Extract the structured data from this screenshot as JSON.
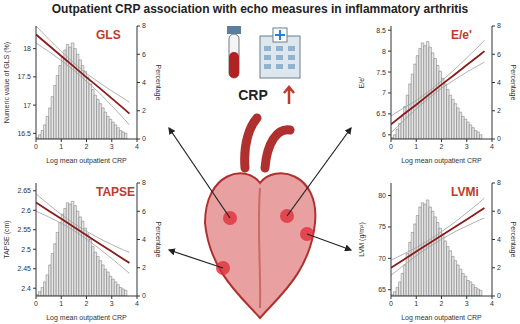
{
  "title": "Outpatient CRP association with echo measures in inflammatory arthritis",
  "icon_text": "CRP",
  "chart_data": [
    {
      "type": "histogram",
      "title": "GLS",
      "x_label": "Log mean outpatient CRP",
      "y_label": "Numeric value of GLS (%)",
      "y2_label": "Percentage",
      "xlim": [
        0,
        4
      ],
      "xticks": [
        0,
        1,
        2,
        3,
        4
      ],
      "ylim": [
        16.4,
        18.4
      ],
      "yticks": [
        16.5,
        17,
        17.5,
        18
      ],
      "y2lim": [
        0,
        8
      ],
      "y2ticks": [
        0,
        2,
        4,
        6,
        8
      ],
      "bins": [
        0,
        0.1,
        0.2,
        0.3,
        0.4,
        0.5,
        0.6,
        0.7,
        0.8,
        0.9,
        1,
        1.1,
        1.2,
        1.3,
        1.4,
        1.5,
        1.6,
        1.7,
        1.8,
        1.9,
        2,
        2.1,
        2.2,
        2.3,
        2.4,
        2.5,
        2.6,
        2.7,
        2.8,
        2.9,
        3,
        3.1,
        3.2,
        3.3,
        3.4,
        3.5,
        3.6
      ],
      "series": [
        {
          "type": "bar",
          "axis": "y2",
          "color": "#e6e6e6",
          "values": [
            0.1,
            0.3,
            0.6,
            1,
            1.6,
            2.2,
            3,
            3.8,
            4.5,
            5.2,
            5.8,
            6.3,
            6.7,
            6.5,
            6.8,
            6.4,
            6,
            5.6,
            5.2,
            4.8,
            4.4,
            3.9,
            3.5,
            3.1,
            2.8,
            2.5,
            2.2,
            1.9,
            1.6,
            1.4,
            1.2,
            1,
            0.8,
            0.6,
            0.5,
            0.4
          ]
        },
        {
          "type": "line",
          "color": "#8b1a1a",
          "x": [
            0,
            0.5,
            1,
            1.5,
            2,
            2.5,
            3,
            3.5,
            3.7
          ],
          "values": [
            18.25,
            18.06,
            17.87,
            17.68,
            17.49,
            17.31,
            17.12,
            16.93,
            16.85
          ]
        },
        {
          "type": "line",
          "color": "#9e9e9e",
          "x": [
            0,
            0.5,
            1,
            1.5,
            2,
            2.5,
            3,
            3.5,
            3.7
          ],
          "values": [
            18.4,
            18.17,
            17.95,
            17.745,
            17.56,
            17.4,
            17.25,
            17.11,
            17.05
          ]
        },
        {
          "type": "line",
          "color": "#9e9e9e",
          "x": [
            0,
            0.5,
            1,
            1.5,
            2,
            2.5,
            3,
            3.5,
            3.7
          ],
          "values": [
            18.1,
            17.95,
            17.79,
            17.615,
            17.42,
            17.22,
            16.99,
            16.75,
            16.65
          ]
        }
      ]
    },
    {
      "type": "histogram",
      "title": "E/e'",
      "x_label": "Log mean outpatient CRP",
      "y_label": "E/e'",
      "y2_label": "Percentage",
      "xlim": [
        0,
        4
      ],
      "xticks": [
        0,
        1,
        2,
        3,
        4
      ],
      "ylim": [
        5.9,
        8.6
      ],
      "yticks": [
        6,
        6.5,
        7,
        7.5,
        8,
        8.5
      ],
      "y2lim": [
        0,
        8
      ],
      "y2ticks": [
        0,
        2,
        4,
        6,
        8
      ],
      "bins": [
        0,
        0.1,
        0.2,
        0.3,
        0.4,
        0.5,
        0.6,
        0.7,
        0.8,
        0.9,
        1,
        1.1,
        1.2,
        1.3,
        1.4,
        1.5,
        1.6,
        1.7,
        1.8,
        1.9,
        2,
        2.1,
        2.2,
        2.3,
        2.4,
        2.5,
        2.6,
        2.7,
        2.8,
        2.9,
        3,
        3.1,
        3.2,
        3.3,
        3.4,
        3.5,
        3.6
      ],
      "series": [
        {
          "type": "bar",
          "axis": "y2",
          "color": "#e6e6e6",
          "values": [
            0.1,
            0.3,
            0.7,
            1.1,
            1.6,
            2.3,
            3.1,
            3.9,
            4.6,
            5.3,
            5.9,
            6.4,
            6.8,
            6.6,
            6.9,
            6.5,
            6.1,
            5.7,
            5.2,
            4.8,
            4.3,
            3.9,
            3.5,
            3.1,
            2.8,
            2.5,
            2.2,
            1.9,
            1.6,
            1.4,
            1.2,
            1,
            0.8,
            0.6,
            0.5,
            0.3
          ]
        },
        {
          "type": "line",
          "color": "#8b1a1a",
          "x": [
            0,
            0.5,
            1,
            1.5,
            2,
            2.5,
            3,
            3.5,
            3.7
          ],
          "values": [
            6.25,
            6.49,
            6.72,
            6.96,
            7.2,
            7.43,
            7.67,
            7.9,
            8
          ]
        },
        {
          "type": "line",
          "color": "#9e9e9e",
          "x": [
            0,
            0.5,
            1,
            1.5,
            2,
            2.5,
            3,
            3.5,
            3.7
          ],
          "values": [
            6.45,
            6.64,
            6.82,
            7.04,
            7.29,
            7.55,
            7.84,
            8.13,
            8.26
          ]
        },
        {
          "type": "line",
          "color": "#9e9e9e",
          "x": [
            0,
            0.5,
            1,
            1.5,
            2,
            2.5,
            3,
            3.5,
            3.7
          ],
          "values": [
            6.05,
            6.34,
            6.62,
            6.88,
            7.11,
            7.31,
            7.5,
            7.67,
            7.74
          ]
        }
      ]
    },
    {
      "type": "histogram",
      "title": "TAPSE",
      "x_label": "Log mean outpatient CRP",
      "y_label": "TAPSE (cm)",
      "y2_label": "Percentage",
      "xlim": [
        0,
        4
      ],
      "xticks": [
        0,
        1,
        2,
        3,
        4
      ],
      "ylim": [
        2.38,
        2.67
      ],
      "yticks": [
        2.4,
        2.45,
        2.5,
        2.55,
        2.6,
        2.65
      ],
      "y2lim": [
        0,
        8
      ],
      "y2ticks": [
        0,
        2,
        4,
        6,
        8
      ],
      "bins": [
        0,
        0.1,
        0.2,
        0.3,
        0.4,
        0.5,
        0.6,
        0.7,
        0.8,
        0.9,
        1,
        1.1,
        1.2,
        1.3,
        1.4,
        1.5,
        1.6,
        1.7,
        1.8,
        1.9,
        2,
        2.1,
        2.2,
        2.3,
        2.4,
        2.5,
        2.6,
        2.7,
        2.8,
        2.9,
        3,
        3.1,
        3.2,
        3.3,
        3.4,
        3.5,
        3.6
      ],
      "series": [
        {
          "type": "bar",
          "axis": "y2",
          "color": "#e6e6e6",
          "values": [
            0.1,
            0.3,
            0.6,
            1,
            1.5,
            2.2,
            3,
            3.7,
            4.5,
            5.2,
            5.8,
            6.2,
            6.6,
            6.5,
            6.7,
            6.4,
            6,
            5.6,
            5.3,
            4.8,
            4.4,
            4,
            3.5,
            3.1,
            2.8,
            2.5,
            2.2,
            1.9,
            1.7,
            1.4,
            1.2,
            1,
            0.8,
            0.6,
            0.5,
            0.4
          ]
        },
        {
          "type": "line",
          "color": "#8b1a1a",
          "x": [
            0,
            0.5,
            1,
            1.5,
            2,
            2.5,
            3,
            3.5,
            3.7
          ],
          "values": [
            2.62,
            2.599,
            2.578,
            2.557,
            2.536,
            2.515,
            2.494,
            2.473,
            2.465
          ]
        },
        {
          "type": "line",
          "color": "#9e9e9e",
          "x": [
            0,
            0.5,
            1,
            1.5,
            2,
            2.5,
            3,
            3.5,
            3.7
          ],
          "values": [
            2.642,
            2.615,
            2.589,
            2.566,
            2.546,
            2.528,
            2.512,
            2.497,
            2.492
          ]
        },
        {
          "type": "line",
          "color": "#9e9e9e",
          "x": [
            0,
            0.5,
            1,
            1.5,
            2,
            2.5,
            3,
            3.5,
            3.7
          ],
          "values": [
            2.598,
            2.583,
            2.567,
            2.548,
            2.526,
            2.502,
            2.476,
            2.449,
            2.438
          ]
        }
      ]
    },
    {
      "type": "histogram",
      "title": "LVMi",
      "x_label": "Log mean outpatient CRP",
      "y_label": "LVM (g/m²)",
      "y2_label": "Percentage",
      "xlim": [
        0,
        4
      ],
      "xticks": [
        0,
        1,
        2,
        3,
        4
      ],
      "ylim": [
        64,
        82
      ],
      "yticks": [
        65,
        70,
        75,
        80
      ],
      "y2lim": [
        0,
        8
      ],
      "y2ticks": [
        0,
        2,
        4,
        6,
        8
      ],
      "bins": [
        0,
        0.1,
        0.2,
        0.3,
        0.4,
        0.5,
        0.6,
        0.7,
        0.8,
        0.9,
        1,
        1.1,
        1.2,
        1.3,
        1.4,
        1.5,
        1.6,
        1.7,
        1.8,
        1.9,
        2,
        2.1,
        2.2,
        2.3,
        2.4,
        2.5,
        2.6,
        2.7,
        2.8,
        2.9,
        3,
        3.1,
        3.2,
        3.3,
        3.4,
        3.5,
        3.6
      ],
      "series": [
        {
          "type": "bar",
          "axis": "y2",
          "color": "#e6e6e6",
          "values": [
            0.1,
            0.3,
            0.6,
            1,
            1.6,
            2.2,
            3,
            3.8,
            4.5,
            5.1,
            5.7,
            6.3,
            6.6,
            6.5,
            6.8,
            6.3,
            6,
            5.6,
            5.2,
            4.8,
            4.4,
            3.9,
            3.5,
            3.2,
            2.8,
            2.5,
            2.2,
            1.9,
            1.6,
            1.4,
            1.1,
            1,
            0.8,
            0.6,
            0.5,
            0.4
          ]
        },
        {
          "type": "line",
          "color": "#8b1a1a",
          "x": [
            0,
            0.5,
            1,
            1.5,
            2,
            2.5,
            3,
            3.5,
            3.7
          ],
          "values": [
            68.5,
            69.78,
            71.07,
            72.35,
            73.64,
            74.92,
            76.2,
            77.49,
            78
          ]
        },
        {
          "type": "line",
          "color": "#9e9e9e",
          "x": [
            0,
            0.5,
            1,
            1.5,
            2,
            2.5,
            3,
            3.5,
            3.7
          ],
          "values": [
            69.7,
            70.68,
            71.72,
            72.9,
            74.24,
            75.67,
            77.25,
            78.89,
            79.6
          ]
        },
        {
          "type": "line",
          "color": "#9e9e9e",
          "x": [
            0,
            0.5,
            1,
            1.5,
            2,
            2.5,
            3,
            3.5,
            3.7
          ],
          "values": [
            67.3,
            68.88,
            70.42,
            71.8,
            73.04,
            74.17,
            75.15,
            76.09,
            76.4
          ]
        }
      ]
    }
  ]
}
